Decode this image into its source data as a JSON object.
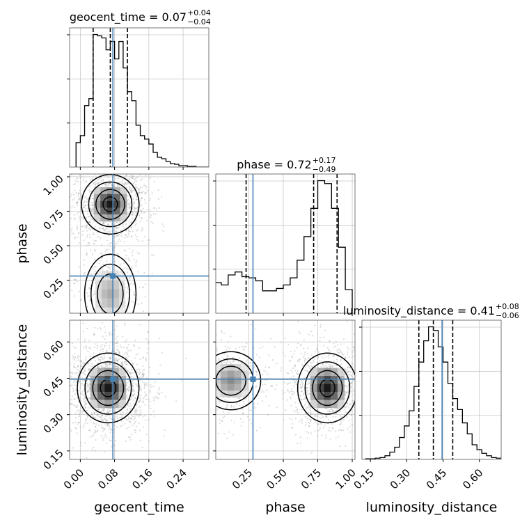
{
  "chart_data": {
    "type": "corner",
    "parameters": [
      "geocent_time",
      "phase",
      "luminosity_distance"
    ],
    "truth_color": "#4682b4",
    "injection": {
      "geocent_time": 0.076,
      "phase": 0.28,
      "luminosity_distance": 0.446
    },
    "titles": [
      {
        "param": "geocent_time",
        "text": "geocent_time = 0.07",
        "plus": "+0.04",
        "minus": "−0.04"
      },
      {
        "param": "phase",
        "text": "phase = 0.72",
        "plus": "+0.17",
        "minus": "−0.49"
      },
      {
        "param": "luminosity_distance",
        "text": "luminosity_distance = 0.41",
        "plus": "+0.08",
        "minus": "−0.06"
      }
    ],
    "axes": {
      "geocent_time": {
        "range": [
          -0.025,
          0.3
        ],
        "ticks": [
          0.0,
          0.08,
          0.16,
          0.24
        ],
        "tick_labels": [
          "0.00",
          "0.08",
          "0.16",
          "0.24"
        ],
        "label": "geocent_time"
      },
      "phase": {
        "range": [
          0.01,
          1.02
        ],
        "ticks": [
          0.25,
          0.5,
          0.75,
          1.0
        ],
        "tick_labels": [
          "0.25",
          "0.50",
          "0.75",
          "1.00"
        ],
        "label": "phase"
      },
      "luminosity_distance": {
        "range": [
          0.115,
          0.69
        ],
        "ticks": [
          0.15,
          0.3,
          0.45,
          0.6
        ],
        "tick_labels": [
          "0.15",
          "0.30",
          "0.45",
          "0.60"
        ],
        "label": "luminosity_distance"
      }
    },
    "histograms": {
      "geocent_time": {
        "bin_edges": [
          -0.01,
          0.0,
          0.01,
          0.02,
          0.03,
          0.04,
          0.05,
          0.06,
          0.07,
          0.08,
          0.09,
          0.1,
          0.11,
          0.12,
          0.13,
          0.14,
          0.15,
          0.16,
          0.17,
          0.18,
          0.19,
          0.2,
          0.21,
          0.22,
          0.23,
          0.24,
          0.25,
          0.26,
          0.27,
          0.28,
          0.29,
          0.3
        ],
        "counts": [
          35,
          45,
          88,
          98,
          190,
          188,
          185,
          168,
          180,
          155,
          180,
          142,
          108,
          95,
          60,
          45,
          40,
          33,
          21,
          14,
          12,
          8,
          5,
          4,
          2,
          2,
          1,
          1,
          0,
          0,
          0
        ],
        "quantiles": [
          0.03,
          0.07,
          0.11
        ]
      },
      "phase": {
        "bin_edges": [
          0.0,
          0.05,
          0.1,
          0.15,
          0.2,
          0.25,
          0.3,
          0.35,
          0.4,
          0.45,
          0.5,
          0.55,
          0.6,
          0.65,
          0.7,
          0.75,
          0.8,
          0.85,
          0.9,
          0.95,
          1.0
        ],
        "counts": [
          52,
          48,
          65,
          70,
          62,
          60,
          55,
          38,
          38,
          42,
          48,
          60,
          90,
          130,
          178,
          225,
          220,
          178,
          112,
          40
        ],
        "quantiles": [
          0.23,
          0.72,
          0.89
        ]
      },
      "luminosity_distance": {
        "bin_edges": [
          0.13,
          0.15,
          0.17,
          0.19,
          0.21,
          0.23,
          0.25,
          0.27,
          0.29,
          0.31,
          0.33,
          0.35,
          0.37,
          0.39,
          0.41,
          0.43,
          0.45,
          0.47,
          0.49,
          0.51,
          0.53,
          0.55,
          0.57,
          0.59,
          0.61,
          0.63,
          0.65,
          0.67,
          0.69
        ],
        "counts": [
          1,
          1,
          2,
          3,
          6,
          12,
          20,
          36,
          55,
          80,
          120,
          160,
          195,
          218,
          212,
          185,
          160,
          125,
          100,
          82,
          60,
          42,
          24,
          16,
          10,
          6,
          3,
          2
        ],
        "quantiles": [
          0.35,
          0.41,
          0.49
        ]
      }
    },
    "joint": {
      "phase_vs_geocent_time": {
        "modes": [
          {
            "x": 0.07,
            "y": 0.8,
            "sx": 0.028,
            "sy": 0.09,
            "w": 1.0
          },
          {
            "x": 0.07,
            "y": 0.15,
            "sx": 0.025,
            "sy": 0.12,
            "w": 0.35
          }
        ]
      },
      "luminosity_distance_vs_geocent_time": {
        "modes": [
          {
            "x": 0.065,
            "y": 0.41,
            "sx": 0.03,
            "sy": 0.06,
            "w": 1.0
          }
        ]
      },
      "luminosity_distance_vs_phase": {
        "modes": [
          {
            "x": 0.82,
            "y": 0.41,
            "sx": 0.09,
            "sy": 0.06,
            "w": 1.0
          },
          {
            "x": 0.12,
            "y": 0.44,
            "sx": 0.09,
            "sy": 0.05,
            "w": 0.5
          }
        ]
      }
    }
  }
}
